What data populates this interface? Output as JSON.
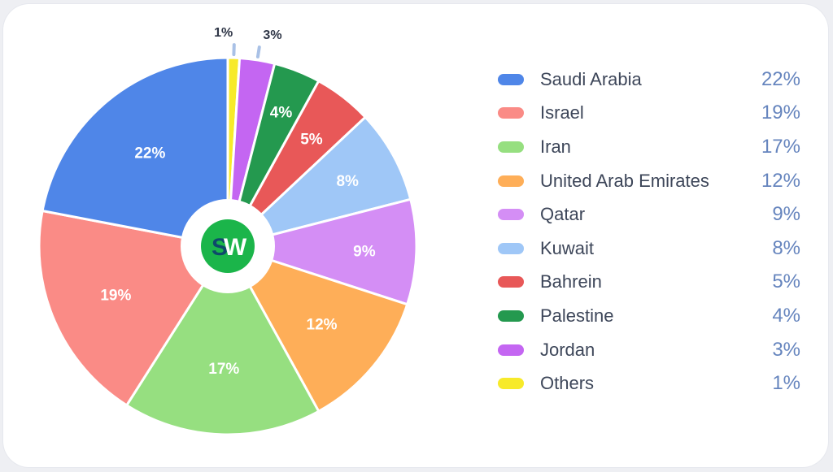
{
  "chart_data": {
    "type": "pie",
    "title": "",
    "legend": "right",
    "categories": [
      "Saudi Arabia",
      "Israel",
      "Iran",
      "United Arab Emirates",
      "Qatar",
      "Kuwait",
      "Bahrein",
      "Palestine",
      "Jordan",
      "Others"
    ],
    "values": [
      22,
      19,
      17,
      12,
      9,
      8,
      5,
      4,
      3,
      1
    ],
    "value_labels": [
      "22%",
      "19%",
      "17%",
      "12%",
      "9%",
      "8%",
      "5%",
      "4%",
      "3%",
      "1%"
    ],
    "colors": [
      "#4f86e8",
      "#fa8b86",
      "#96df80",
      "#feae58",
      "#d48ef5",
      "#9fc7f7",
      "#e85858",
      "#24994f",
      "#c466f2",
      "#f7ea2a"
    ],
    "slice_order_clockwise": [
      "Others",
      "Jordan",
      "Palestine",
      "Bahrein",
      "Kuwait",
      "Qatar",
      "United Arab Emirates",
      "Iran",
      "Israel",
      "Saudi Arabia"
    ],
    "label_outside": [
      "Others",
      "Jordan"
    ]
  },
  "logo": {
    "text": "SW",
    "colors": {
      "background": "#1bb54a",
      "s": "#0e4a6b",
      "w": "#ffffff"
    }
  }
}
